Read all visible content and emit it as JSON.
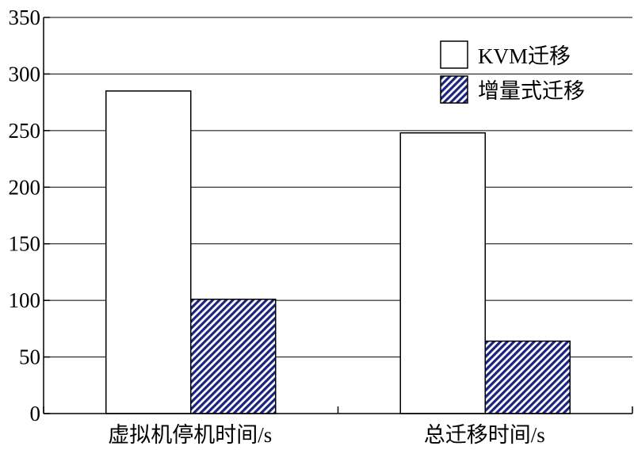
{
  "chart_data": {
    "type": "bar",
    "categories": [
      "虚拟机停机时间/s",
      "总迁移时间/s"
    ],
    "series": [
      {
        "name": "KVM迁移",
        "values": [
          285,
          248
        ],
        "fill": "#ffffff"
      },
      {
        "name": "增量式迁移",
        "values": [
          101,
          64
        ],
        "fill": "#1a237e"
      }
    ],
    "yticks": [
      "0",
      "50",
      "100",
      "150",
      "200",
      "250",
      "300",
      "350"
    ],
    "ylim": [
      0,
      350
    ],
    "grid": true,
    "legend": "top-right",
    "xlabel": "",
    "ylabel": ""
  }
}
